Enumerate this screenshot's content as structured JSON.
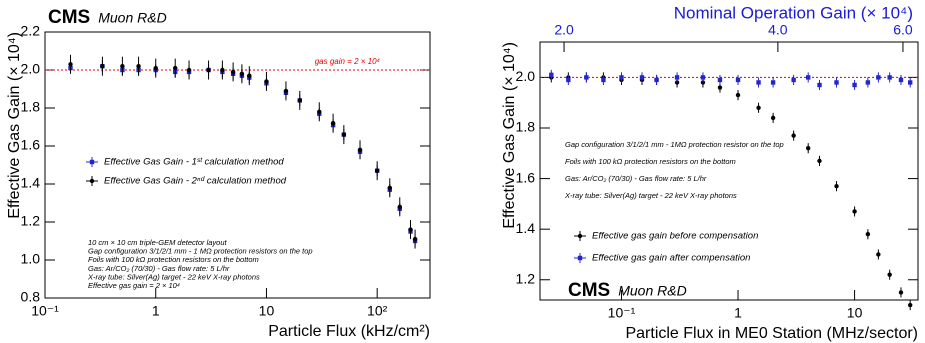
{
  "chart_data": [
    {
      "type": "scatter",
      "title": "CMS",
      "subtitle": "Muon R&D",
      "xlabel": "Particle Flux (kHz/cm²)",
      "ylabel": "Effective Gas Gain (× 10⁴)",
      "xlog": true,
      "xlim": [
        0.1,
        300
      ],
      "ylim": [
        0.8,
        2.2
      ],
      "xticks": [
        {
          "value": 0.1,
          "label": "10⁻¹"
        },
        1,
        10,
        {
          "value": 100,
          "label": "10²"
        }
      ],
      "yticks": [
        0.8,
        {
          "value": 1,
          "label": "1.0"
        },
        1.2,
        1.4,
        1.6,
        1.8,
        {
          "value": 2,
          "label": "2.0"
        },
        2.2
      ],
      "ref_line": {
        "value": 2,
        "color": "#e00000",
        "label": "gas gain = 2 × 10⁴"
      },
      "legend": "center-left",
      "series": [
        {
          "name": "Effective Gas Gain - 1ˢᵗ calculation method",
          "color": "#2525d0",
          "marker": "square",
          "x": [
            0.17,
            0.33,
            0.5,
            0.7,
            1,
            1.5,
            2,
            3,
            4,
            5,
            6,
            7,
            10,
            15,
            20,
            30,
            40,
            50,
            70,
            100,
            130,
            160,
            200,
            220
          ],
          "values": [
            2.01,
            2.02,
            2.0,
            2.0,
            2.0,
            1.99,
            1.99,
            2.0,
            1.99,
            1.98,
            1.97,
            1.96,
            1.93,
            1.88,
            1.84,
            1.77,
            1.71,
            1.66,
            1.57,
            1.47,
            1.37,
            1.27,
            1.15,
            1.1
          ],
          "errors": [
            0.03,
            0.03,
            0.03,
            0.03,
            0.03,
            0.03,
            0.03,
            0.03,
            0.03,
            0.03,
            0.03,
            0.03,
            0.03,
            0.03,
            0.03,
            0.03,
            0.03,
            0.03,
            0.03,
            0.03,
            0.03,
            0.03,
            0.03,
            0.03
          ]
        },
        {
          "name": "Effective Gas Gain - 2ⁿᵈ calculation method",
          "color": "#000000",
          "marker": "circle",
          "x": [
            0.17,
            0.33,
            0.5,
            0.7,
            1,
            1.5,
            2,
            3,
            4,
            5,
            6,
            7,
            10,
            15,
            20,
            30,
            40,
            50,
            70,
            100,
            130,
            160,
            200,
            220
          ],
          "values": [
            2.03,
            2.02,
            2.02,
            2.02,
            2.01,
            2.01,
            2.0,
            2.0,
            2.0,
            1.99,
            1.98,
            1.97,
            1.94,
            1.89,
            1.84,
            1.78,
            1.72,
            1.66,
            1.58,
            1.47,
            1.38,
            1.28,
            1.16,
            1.11
          ],
          "errors": [
            0.05,
            0.05,
            0.05,
            0.05,
            0.05,
            0.05,
            0.05,
            0.05,
            0.05,
            0.05,
            0.05,
            0.05,
            0.05,
            0.05,
            0.05,
            0.05,
            0.05,
            0.05,
            0.05,
            0.05,
            0.05,
            0.05,
            0.05,
            0.05
          ]
        }
      ],
      "notes": [
        "10 cm × 10 cm triple-GEM detector layout",
        "Gap configuration 3/1/2/1 mm - 1 MΩ protection resistors on the top",
        "Foils with 100 kΩ protection resistors on the bottom",
        "Gas: Ar/CO₂ (70/30) - Gas flow rate: 5 L/hr",
        "X-ray tube: Silver(Ag) target - 22 keV X-ray photons",
        "Effective gas gain = 2 × 10⁴"
      ]
    },
    {
      "type": "scatter",
      "title": "CMS",
      "subtitle": "Muon R&D",
      "xlabel": "Particle Flux in ME0 Station (MHz/sector)",
      "ylabel": "Effective Gas Gain (× 10⁴)",
      "x2label": "Nominal Operation Gain (× 10⁴)",
      "x2color": "#1a1ad6",
      "xlog": true,
      "xlim": [
        0.02,
        35
      ],
      "ylim": [
        1.12,
        2.14
      ],
      "x2log": true,
      "x2lim": [
        1.85,
        6.3
      ],
      "xticks": [
        {
          "value": 0.1,
          "label": "10⁻¹"
        },
        1,
        10
      ],
      "x2ticks": [
        {
          "value": 2,
          "label": "2.0"
        },
        {
          "value": 4,
          "label": "4.0"
        },
        {
          "value": 6,
          "label": "6.0"
        }
      ],
      "yticks": [
        1.2,
        1.4,
        1.6,
        1.8,
        {
          "value": 2,
          "label": "2.0"
        }
      ],
      "ref_line": {
        "value": 2,
        "color": "#e00000"
      },
      "legend": "lower-left",
      "series": [
        {
          "name": "Effective gas gain before compensation",
          "color": "#000000",
          "marker": "circle",
          "x": [
            0.025,
            0.035,
            0.05,
            0.07,
            0.1,
            0.15,
            0.2,
            0.3,
            0.5,
            0.7,
            1,
            1.5,
            2,
            3,
            4,
            5,
            7,
            10,
            13,
            16,
            20,
            25,
            30
          ],
          "values": [
            2.0,
            2.0,
            2.0,
            2.0,
            1.99,
            1.99,
            1.99,
            1.98,
            1.98,
            1.96,
            1.93,
            1.88,
            1.84,
            1.77,
            1.72,
            1.67,
            1.57,
            1.47,
            1.38,
            1.3,
            1.22,
            1.15,
            1.1
          ],
          "errors": [
            0.02,
            0.02,
            0.02,
            0.02,
            0.02,
            0.02,
            0.02,
            0.02,
            0.02,
            0.02,
            0.02,
            0.02,
            0.02,
            0.02,
            0.02,
            0.02,
            0.02,
            0.02,
            0.02,
            0.02,
            0.02,
            0.02,
            0.02
          ]
        },
        {
          "name": "Effective gas gain after compensation",
          "color": "#2525d0",
          "marker": "square",
          "x": [
            0.025,
            0.035,
            0.05,
            0.07,
            0.1,
            0.15,
            0.2,
            0.3,
            0.5,
            0.7,
            1,
            1.5,
            2,
            3,
            4,
            5,
            7,
            10,
            13,
            16,
            20,
            25,
            30
          ],
          "values": [
            2.01,
            1.99,
            2.0,
            1.99,
            2.0,
            2.0,
            1.99,
            2.0,
            2.0,
            1.99,
            1.99,
            1.98,
            1.98,
            1.99,
            2.0,
            1.97,
            1.98,
            1.97,
            1.98,
            2.0,
            2.0,
            1.99,
            1.98
          ],
          "errors": [
            0.02,
            0.02,
            0.02,
            0.02,
            0.02,
            0.02,
            0.02,
            0.02,
            0.02,
            0.02,
            0.02,
            0.02,
            0.02,
            0.02,
            0.02,
            0.02,
            0.02,
            0.02,
            0.02,
            0.02,
            0.02,
            0.02,
            0.02
          ]
        }
      ],
      "notes": [
        "Gap configuration 3/1/2/1 mm - 1MΩ protection resistor on the top",
        "Foils with 100 kΩ protection resistors on the bottom",
        "Gas: Ar/CO₂ (70/30) - Gas flow rate: 5 L/hr",
        "X-ray tube: Silver(Ag) target - 22 keV X-ray photons"
      ]
    }
  ]
}
